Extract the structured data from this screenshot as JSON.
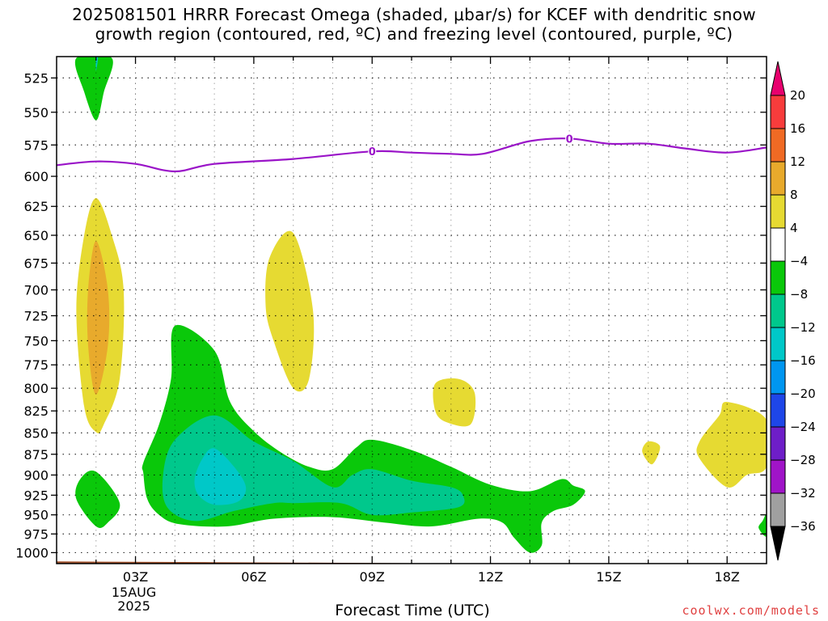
{
  "chart_data": {
    "type": "heatmap",
    "title_line1": "2025081501 HRRR Forecast Omega (shaded, μbar/s) for KCEF with dendritic snow",
    "title_line2": "growth region (contoured, red, ºC) and freezing level (contoured, purple, ºC)",
    "xlabel": "Forecast Time (UTC)",
    "ylabel": "",
    "x_range_hours_utc": [
      1,
      19
    ],
    "x_ticks": [
      {
        "hour": 3,
        "label": "03Z",
        "sub1": "15AUG",
        "sub2": "2025"
      },
      {
        "hour": 6,
        "label": "06Z"
      },
      {
        "hour": 9,
        "label": "09Z"
      },
      {
        "hour": 12,
        "label": "12Z"
      },
      {
        "hour": 15,
        "label": "15Z"
      },
      {
        "hour": 18,
        "label": "18Z"
      }
    ],
    "y_axis": {
      "scale": "log-pressure",
      "range_hPa": [
        510,
        1015
      ],
      "inverted": true
    },
    "y_ticks": [
      525,
      550,
      575,
      600,
      625,
      650,
      675,
      700,
      725,
      750,
      775,
      800,
      825,
      850,
      875,
      900,
      925,
      950,
      975,
      1000
    ],
    "grid": true,
    "colorbar": {
      "labels": [
        "20",
        "16",
        "12",
        "8",
        "4",
        "-4",
        "-8",
        "-12",
        "-16",
        "-20",
        "-24",
        "-28",
        "-32",
        "-36"
      ],
      "colors": [
        "#e8006e",
        "#f83c3c",
        "#f06a24",
        "#e8aa2c",
        "#e6da32",
        "#ffffff",
        "#0ac80a",
        "#00c88c",
        "#00c8c8",
        "#0096f0",
        "#1e46e8",
        "#6e1ec8",
        "#a014c8",
        "#a0a0a0",
        "#000000"
      ]
    },
    "freezing_level": {
      "label": "0",
      "color": "#9a14c8",
      "points": [
        [
          1,
          591
        ],
        [
          2,
          588
        ],
        [
          3,
          590
        ],
        [
          4,
          596
        ],
        [
          5,
          590
        ],
        [
          7,
          586
        ],
        [
          9,
          580
        ],
        [
          10,
          581
        ],
        [
          11,
          582
        ],
        [
          11.8,
          582
        ],
        [
          13,
          572
        ],
        [
          14,
          570
        ],
        [
          15,
          574
        ],
        [
          16,
          574
        ],
        [
          17,
          578
        ],
        [
          18,
          581
        ],
        [
          19,
          577
        ]
      ],
      "label_at_hours": [
        9,
        14
      ]
    },
    "omega_regions": [
      {
        "value_class": "-8",
        "color": "#0ac80a",
        "points": [
          [
            1.5,
            511
          ],
          [
            2.4,
            511
          ],
          [
            2.2,
            535
          ],
          [
            2.0,
            556
          ],
          [
            1.7,
            535
          ]
        ]
      },
      {
        "value_class": "-12",
        "color": "#00c8c8",
        "points": [
          [
            2.0,
            511
          ],
          [
            2.05,
            511
          ],
          [
            2.0,
            520
          ]
        ]
      },
      {
        "value_class": "4",
        "color": "#e6da32",
        "points": [
          [
            2.0,
            618
          ],
          [
            2.4,
            650
          ],
          [
            2.7,
            700
          ],
          [
            2.6,
            790
          ],
          [
            2.2,
            840
          ],
          [
            2.0,
            849
          ],
          [
            1.7,
            820
          ],
          [
            1.5,
            720
          ],
          [
            1.7,
            650
          ]
        ]
      },
      {
        "value_class": "8",
        "color": "#e8aa2c",
        "points": [
          [
            2.0,
            655
          ],
          [
            2.3,
            700
          ],
          [
            2.3,
            755
          ],
          [
            2.0,
            807
          ],
          [
            1.8,
            755
          ],
          [
            1.8,
            700
          ]
        ]
      },
      {
        "value_class": "4",
        "color": "#e6da32",
        "points": [
          [
            7,
            648
          ],
          [
            7.5,
            720
          ],
          [
            7.4,
            790
          ],
          [
            7.0,
            800
          ],
          [
            6.5,
            750
          ],
          [
            6.3,
            715
          ],
          [
            6.4,
            670
          ]
        ]
      },
      {
        "value_class": "4",
        "color": "#e6da32",
        "points": [
          [
            10.6,
            795
          ],
          [
            11.2,
            790
          ],
          [
            11.6,
            805
          ],
          [
            11.5,
            840
          ],
          [
            10.9,
            838
          ],
          [
            10.6,
            825
          ]
        ]
      },
      {
        "value_class": "4",
        "color": "#e6da32",
        "points": [
          [
            16.0,
            860
          ],
          [
            16.3,
            866
          ],
          [
            16.1,
            887
          ],
          [
            15.85,
            872
          ]
        ]
      },
      {
        "value_class": "4",
        "color": "#e6da32",
        "points": [
          [
            18.0,
            815
          ],
          [
            19.0,
            835
          ],
          [
            19.0,
            890
          ],
          [
            18.5,
            900
          ],
          [
            18.0,
            915
          ],
          [
            17.3,
            880
          ],
          [
            17.3,
            860
          ],
          [
            17.8,
            830
          ]
        ]
      },
      {
        "value_class": "-8",
        "color": "#0ac80a",
        "points": [
          [
            2.0,
            896
          ],
          [
            2.6,
            935
          ],
          [
            2.3,
            960
          ],
          [
            2.0,
            965
          ],
          [
            1.5,
            930
          ],
          [
            1.6,
            905
          ]
        ]
      },
      {
        "value_class": "-8",
        "color": "#0ac80a",
        "points": [
          [
            4.0,
            735
          ],
          [
            5.0,
            760
          ],
          [
            5.4,
            815
          ],
          [
            6.0,
            848
          ],
          [
            6.7,
            873
          ],
          [
            7.4,
            890
          ],
          [
            8.0,
            893
          ],
          [
            8.6,
            867
          ],
          [
            9.0,
            858
          ],
          [
            10.0,
            870
          ],
          [
            11.0,
            890
          ],
          [
            12.0,
            912
          ],
          [
            13.0,
            920
          ],
          [
            13.8,
            905
          ],
          [
            14.1,
            913
          ],
          [
            14.4,
            920
          ],
          [
            14.1,
            937
          ],
          [
            13.6,
            945
          ],
          [
            13.3,
            960
          ],
          [
            13.3,
            990
          ],
          [
            13.0,
            1000
          ],
          [
            12.6,
            980
          ],
          [
            12.3,
            960
          ],
          [
            11.7,
            955
          ],
          [
            10.5,
            965
          ],
          [
            9.3,
            960
          ],
          [
            8.0,
            953
          ],
          [
            6.5,
            955
          ],
          [
            5.3,
            965
          ],
          [
            4.1,
            962
          ],
          [
            3.6,
            950
          ],
          [
            3.3,
            930
          ],
          [
            3.2,
            898
          ],
          [
            3.2,
            885
          ],
          [
            3.6,
            840
          ],
          [
            3.9,
            790
          ]
        ]
      },
      {
        "value_class": "-12",
        "color": "#00c88c",
        "points": [
          [
            5.0,
            830
          ],
          [
            6.0,
            860
          ],
          [
            7.0,
            883
          ],
          [
            8.0,
            915
          ],
          [
            8.5,
            900
          ],
          [
            9.0,
            893
          ],
          [
            10.0,
            907
          ],
          [
            11.0,
            915
          ],
          [
            11.3,
            925
          ],
          [
            11.2,
            940
          ],
          [
            10.0,
            947
          ],
          [
            9.0,
            950
          ],
          [
            8.2,
            935
          ],
          [
            7.0,
            935
          ],
          [
            6.5,
            935
          ],
          [
            5.5,
            945
          ],
          [
            4.5,
            958
          ],
          [
            3.8,
            940
          ],
          [
            3.7,
            900
          ],
          [
            4.0,
            858
          ]
        ]
      },
      {
        "value_class": "-16",
        "color": "#00c8c8",
        "points": [
          [
            5.0,
            868
          ],
          [
            5.5,
            890
          ],
          [
            5.8,
            915
          ],
          [
            5.6,
            933
          ],
          [
            5.0,
            937
          ],
          [
            4.6,
            925
          ],
          [
            4.5,
            905
          ],
          [
            4.7,
            880
          ]
        ]
      },
      {
        "value_class": "-8",
        "color": "#0ac80a",
        "points": [
          [
            19.0,
            950
          ],
          [
            19.0,
            978
          ],
          [
            18.8,
            967
          ],
          [
            18.9,
            958
          ]
        ]
      }
    ],
    "surface_strip": {
      "color": "#a0522d",
      "points": [
        [
          1,
          1012
        ],
        [
          5,
          1013
        ],
        [
          12,
          1015
        ],
        [
          19,
          1015
        ]
      ]
    }
  },
  "credit": "coolwx.com/models"
}
